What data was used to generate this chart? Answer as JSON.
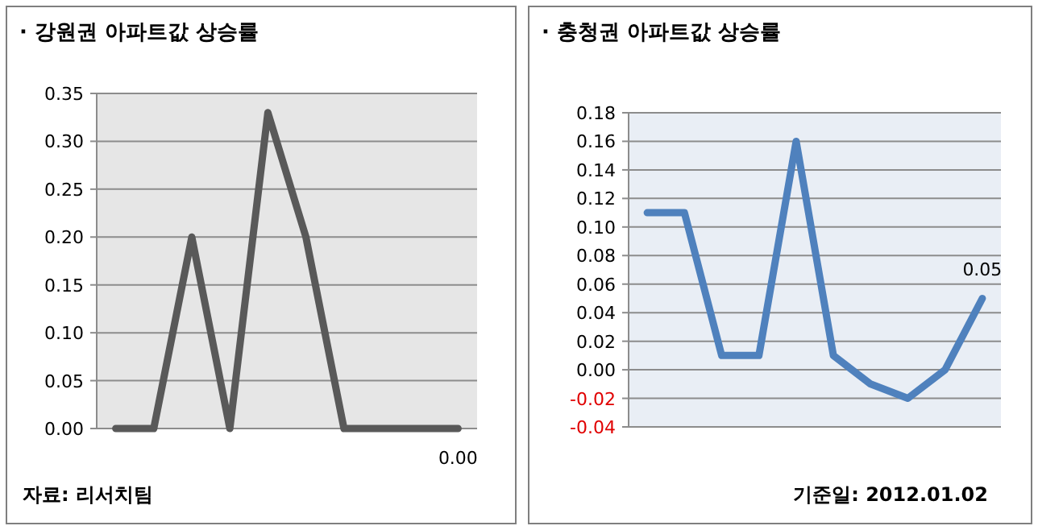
{
  "chart_data": [
    {
      "type": "line",
      "title": "· 강원권 아파트값 상승률",
      "categories": [
        null,
        null,
        null,
        null,
        null,
        null,
        null,
        null,
        null,
        null
      ],
      "series": [
        {
          "color": "#595959",
          "values": [
            0,
            0,
            0.2,
            0,
            0.33,
            0.2,
            0,
            0,
            0,
            0
          ],
          "value_labels": [
            null,
            null,
            null,
            null,
            null,
            null,
            null,
            null,
            null,
            "0.00"
          ]
        }
      ],
      "ylim": [
        0,
        0.35
      ],
      "yticks": [
        {
          "value": 0,
          "label": "0.00"
        },
        {
          "value": 0.05,
          "label": "0.05"
        },
        {
          "value": 0.1,
          "label": "0.10"
        },
        {
          "value": 0.15,
          "label": "0.15"
        },
        {
          "value": 0.2,
          "label": "0.20"
        },
        {
          "value": 0.25,
          "label": "0.25"
        },
        {
          "value": 0.3,
          "label": "0.30"
        },
        {
          "value": 0.35,
          "label": "0.35"
        }
      ],
      "grid": "y",
      "marker": "none",
      "line_style": "solid",
      "tick_labels": "y",
      "annotations": [
        "자료: 리서치팀"
      ]
    },
    {
      "type": "line",
      "title": "· 충청권 아파트값 상승률",
      "categories": [
        null,
        null,
        null,
        null,
        null,
        null,
        null,
        null,
        null,
        null
      ],
      "series": [
        {
          "color": "#4f81bd",
          "values": [
            0.11,
            0.11,
            0.01,
            0.01,
            0.16,
            0.01,
            -0.01,
            -0.02,
            0,
            0.05
          ],
          "value_labels": [
            null,
            null,
            null,
            null,
            null,
            null,
            null,
            null,
            null,
            "0.05"
          ]
        }
      ],
      "ylim": [
        -0.04,
        0.18
      ],
      "yticks": [
        {
          "value": -0.04,
          "label": "-0.04"
        },
        {
          "value": -0.02,
          "label": "-0.02"
        },
        {
          "value": 0,
          "label": "0.00"
        },
        {
          "value": 0.02,
          "label": "0.02"
        },
        {
          "value": 0.04,
          "label": "0.04"
        },
        {
          "value": 0.06,
          "label": "0.06"
        },
        {
          "value": 0.08,
          "label": "0.08"
        },
        {
          "value": 0.1,
          "label": "0.10"
        },
        {
          "value": 0.12,
          "label": "0.12"
        },
        {
          "value": 0.14,
          "label": "0.14"
        },
        {
          "value": 0.16,
          "label": "0.16"
        },
        {
          "value": 0.18,
          "label": "0.18"
        }
      ],
      "grid": "y",
      "marker": "none",
      "line_style": "solid",
      "tick_labels": "y",
      "annotations": [
        "기준일: 2012.01.02"
      ]
    }
  ]
}
